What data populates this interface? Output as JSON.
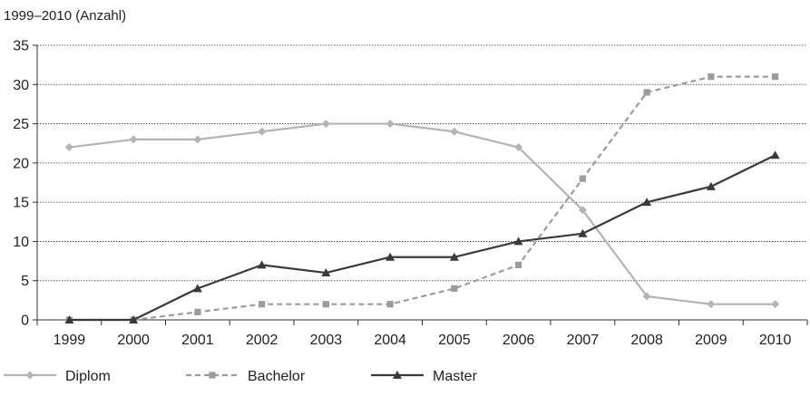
{
  "chart_data": {
    "type": "line",
    "subtitle": "1999–2010 (Anzahl)",
    "categories": [
      "1999",
      "2000",
      "2001",
      "2002",
      "2003",
      "2004",
      "2005",
      "2006",
      "2007",
      "2008",
      "2009",
      "2010"
    ],
    "ylim": [
      0,
      35
    ],
    "yticks": [
      "0",
      "5",
      "10",
      "15",
      "20",
      "25",
      "30",
      "35"
    ],
    "grid": true,
    "legend_position": "bottom-left",
    "series": [
      {
        "name": "Diplom",
        "values": [
          22,
          23,
          23,
          24,
          25,
          25,
          24,
          22,
          14,
          3,
          2,
          2
        ],
        "color": "#b4b4b4",
        "line_style": "solid",
        "marker": "diamond"
      },
      {
        "name": "Bachelor",
        "values": [
          0,
          0,
          1,
          2,
          2,
          2,
          4,
          7,
          18,
          29,
          31,
          31
        ],
        "color": "#9c9c9c",
        "line_style": "dashed",
        "marker": "square"
      },
      {
        "name": "Master",
        "values": [
          0,
          0,
          4,
          7,
          6,
          8,
          8,
          10,
          11,
          15,
          17,
          21
        ],
        "color": "#3a3a3a",
        "line_style": "solid",
        "marker": "triangle"
      }
    ]
  }
}
